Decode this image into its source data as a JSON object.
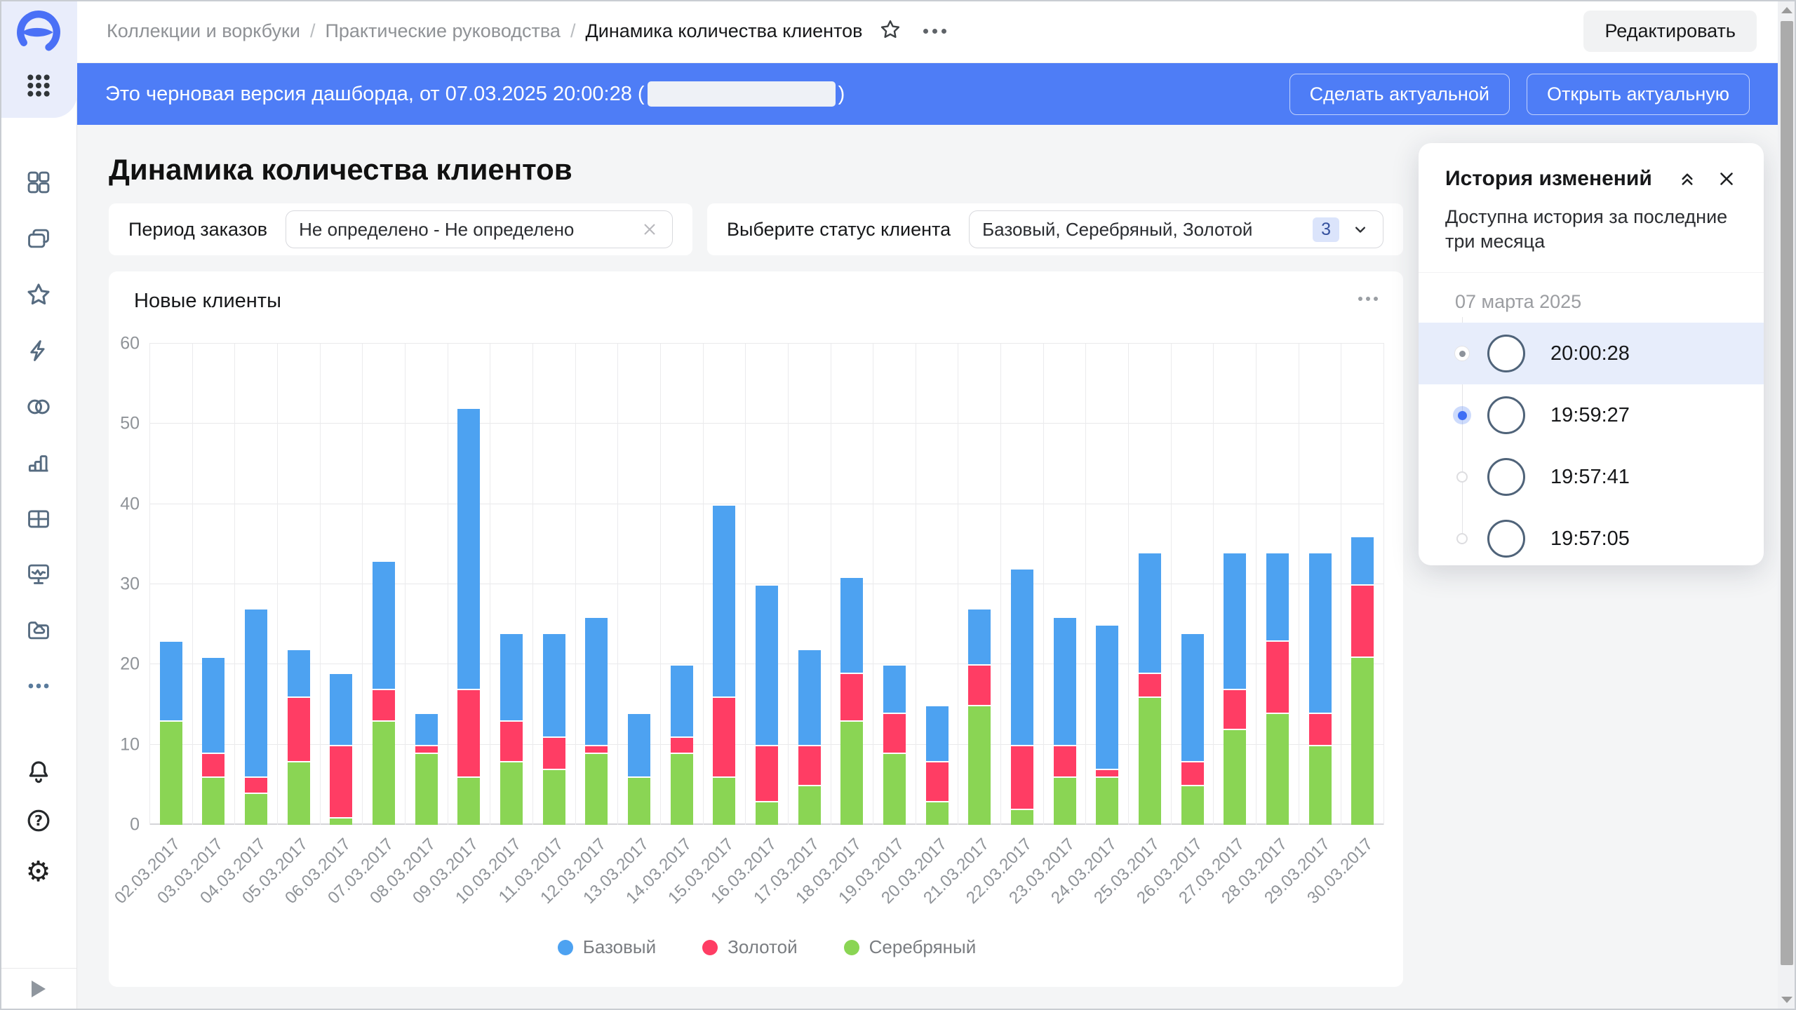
{
  "topbar": {
    "breadcrumbs": [
      "Коллекции и воркбуки",
      "Практические руководства",
      "Динамика количества клиентов"
    ],
    "edit_button": "Редактировать"
  },
  "banner": {
    "text_prefix": "Это черновая версия дашборда, от 07.03.2025 20:00:28 (",
    "text_suffix": ")",
    "make_actual_button": "Сделать актуальной",
    "open_actual_button": "Открыть актуальную"
  },
  "page": {
    "title": "Динамика количества клиентов"
  },
  "filters": {
    "period": {
      "label": "Период заказов",
      "value": "Не определено - Не определено"
    },
    "status": {
      "label": "Выберите статус клиента",
      "value": "Базовый, Серебряный, Золотой",
      "count_badge": "3"
    }
  },
  "chart_data": {
    "type": "bar",
    "stacked": true,
    "title": "Новые клиенты",
    "categories": [
      "02.03.2017",
      "03.03.2017",
      "04.03.2017",
      "05.03.2017",
      "06.03.2017",
      "07.03.2017",
      "08.03.2017",
      "09.03.2017",
      "10.03.2017",
      "11.03.2017",
      "12.03.2017",
      "13.03.2017",
      "14.03.2017",
      "15.03.2017",
      "16.03.2017",
      "17.03.2017",
      "18.03.2017",
      "19.03.2017",
      "20.03.2017",
      "21.03.2017",
      "22.03.2017",
      "23.03.2017",
      "24.03.2017",
      "25.03.2017",
      "26.03.2017",
      "27.03.2017",
      "28.03.2017",
      "29.03.2017",
      "30.03.2017"
    ],
    "series": [
      {
        "name": "Базовый",
        "color": "#4DA2F1",
        "values": [
          10,
          12,
          21,
          6,
          9,
          16,
          4,
          35,
          11,
          13,
          16,
          8,
          9,
          24,
          20,
          12,
          12,
          6,
          7,
          7,
          22,
          16,
          18,
          15,
          16,
          17,
          11,
          20,
          6
        ]
      },
      {
        "name": "Золотой",
        "color": "#FF3D64",
        "values": [
          0,
          3,
          2,
          8,
          9,
          4,
          1,
          11,
          5,
          4,
          1,
          0,
          2,
          10,
          7,
          5,
          6,
          5,
          5,
          5,
          8,
          4,
          1,
          3,
          3,
          5,
          9,
          4,
          9
        ]
      },
      {
        "name": "Серебряный",
        "color": "#8AD554",
        "values": [
          13,
          6,
          4,
          8,
          1,
          13,
          9,
          6,
          8,
          7,
          9,
          6,
          9,
          6,
          3,
          5,
          13,
          9,
          3,
          15,
          2,
          6,
          6,
          16,
          5,
          12,
          14,
          10,
          21
        ]
      }
    ],
    "stack_order_bottom_to_top": [
      "Серебряный",
      "Золотой",
      "Базовый"
    ],
    "ylim": [
      0,
      60
    ],
    "yticks": [
      0,
      10,
      20,
      30,
      40,
      50,
      60
    ],
    "grid": true,
    "legend_position": "bottom"
  },
  "history_panel": {
    "title": "История изменений",
    "subtitle": "Доступна история за последние три месяца",
    "date_group": "07 марта 2025",
    "items": [
      {
        "time": "20:00:28",
        "state": "current",
        "highlighted": true
      },
      {
        "time": "19:59:27",
        "state": "selected",
        "highlighted": false
      },
      {
        "time": "19:57:41",
        "state": "default",
        "highlighted": false
      },
      {
        "time": "19:57:05",
        "state": "default",
        "highlighted": false
      }
    ]
  },
  "colors": {
    "banner_blue": "#4e7df6",
    "highlight_row": "#e7edfb",
    "selected_radio": "#3e6ef5"
  }
}
